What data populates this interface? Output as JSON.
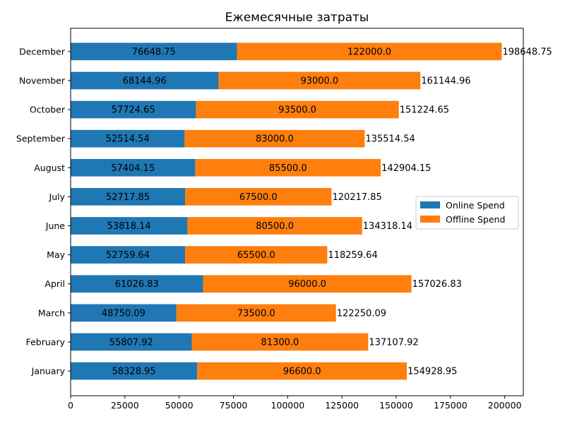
{
  "chart_data": {
    "type": "bar",
    "orientation": "horizontal",
    "stacked": true,
    "title": "Ежемесячные затраты",
    "xlabel": "",
    "ylabel": "",
    "categories": [
      "January",
      "February",
      "March",
      "April",
      "May",
      "June",
      "July",
      "August",
      "September",
      "October",
      "November",
      "December"
    ],
    "series": [
      {
        "name": "Online Spend",
        "color": "#1f77b4",
        "values": [
          58328.95,
          55807.92,
          48750.09,
          61026.83,
          52759.64,
          53818.14,
          52717.85,
          57404.15,
          52514.54,
          57724.65,
          68144.96,
          76648.75
        ],
        "labels": [
          "58328.95",
          "55807.92",
          "48750.09",
          "61026.83",
          "52759.64",
          "53818.14",
          "52717.85",
          "57404.15",
          "52514.54",
          "57724.65",
          "68144.96",
          "76648.75"
        ]
      },
      {
        "name": "Offline Spend",
        "color": "#ff7f0e",
        "values": [
          96600.0,
          81300.0,
          73500.0,
          96000.0,
          65500.0,
          80500.0,
          67500.0,
          85500.0,
          83000.0,
          93500.0,
          93000.0,
          122000.0
        ],
        "labels": [
          "96600.0",
          "81300.0",
          "73500.0",
          "96000.0",
          "65500.0",
          "80500.0",
          "67500.0",
          "85500.0",
          "83000.0",
          "93500.0",
          "93000.0",
          "122000.0"
        ]
      }
    ],
    "totals": [
      154928.95,
      137107.92,
      122250.09,
      157026.83,
      118259.64,
      134318.14,
      120217.85,
      142904.15,
      135514.54,
      151224.65,
      161144.96,
      198648.75
    ],
    "total_labels": [
      "154928.95",
      "137107.92",
      "122250.09",
      "157026.83",
      "118259.64",
      "134318.14",
      "120217.85",
      "142904.15",
      "135514.54",
      "151224.65",
      "161144.96",
      "198648.75"
    ],
    "xlim": [
      0,
      208580
    ],
    "xticks": [
      0,
      25000,
      50000,
      75000,
      100000,
      125000,
      150000,
      175000,
      200000
    ],
    "xtick_labels": [
      "0",
      "25000",
      "50000",
      "75000",
      "100000",
      "125000",
      "150000",
      "175000",
      "200000"
    ],
    "grid": false,
    "legend_position": "center-right"
  }
}
